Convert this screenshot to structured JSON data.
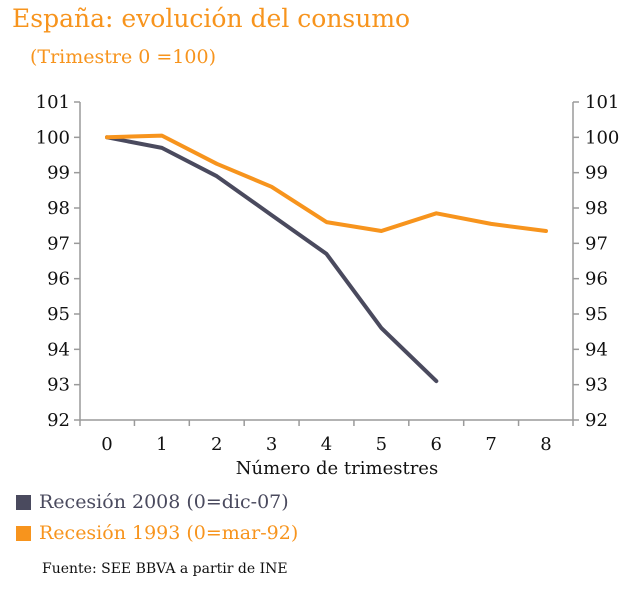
{
  "title": "España: evolución del consumo",
  "subtitle": "(Trimestre 0 =100)",
  "source": "Fuente: SEE BBVA a partir de INE",
  "colors": {
    "series1": "#4a4a5e",
    "series2": "#f7941d",
    "axis": "#9a9a9a"
  },
  "chart_data": {
    "type": "line",
    "x": [
      0,
      1,
      2,
      3,
      4,
      5,
      6,
      7,
      8
    ],
    "xlabel": "Número de trimestres",
    "ylabel": "",
    "ylim": [
      92,
      101
    ],
    "yticks": [
      92,
      93,
      94,
      95,
      96,
      97,
      98,
      99,
      100,
      101
    ],
    "y_axes": "left-and-right",
    "grid": false,
    "legend_position": "bottom-left",
    "series": [
      {
        "name": "Recesión 2008 (0=dic-07)",
        "x": [
          0,
          1,
          2,
          3,
          4,
          5,
          6
        ],
        "values": [
          100.0,
          99.7,
          98.9,
          97.8,
          96.7,
          94.6,
          93.1
        ]
      },
      {
        "name": "Recesión 1993 (0=mar-92)",
        "x": [
          0,
          1,
          2,
          3,
          4,
          5,
          6,
          7,
          8
        ],
        "values": [
          100.0,
          100.05,
          99.25,
          98.6,
          97.6,
          97.35,
          97.85,
          97.55,
          97.35
        ]
      }
    ]
  }
}
